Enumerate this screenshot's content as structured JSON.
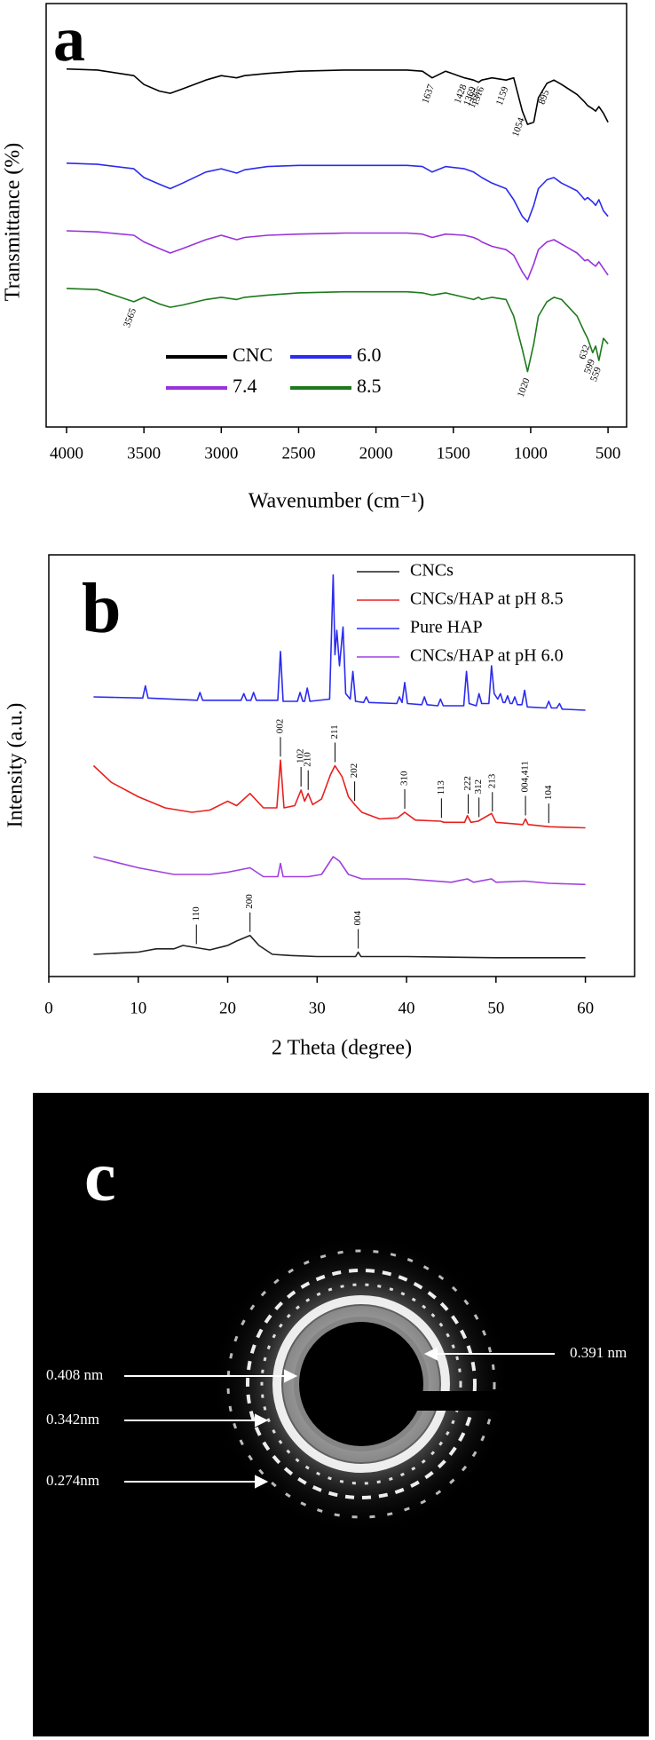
{
  "chart_data": [
    {
      "type": "line",
      "panel_label": "a",
      "x_label": "Wavenumber (cm⁻¹)",
      "y_label": "Transmittance (%)",
      "xlim": [
        4132,
        380
      ],
      "ylim": [
        0,
        382
      ],
      "xticks": [
        4000,
        3500,
        3000,
        2500,
        2000,
        1500,
        1000,
        500
      ],
      "legend": "grid",
      "x": [
        4000,
        3800,
        3565,
        3500,
        3400,
        3330,
        3250,
        3100,
        3000,
        2900,
        2850,
        2700,
        2500,
        2200,
        2000,
        1800,
        1700,
        1637,
        1550,
        1428,
        1369,
        1337,
        1316,
        1250,
        1159,
        1110,
        1054,
        1020,
        980,
        950,
        895,
        850,
        800,
        700,
        650,
        632,
        599,
        580,
        559,
        530,
        500
      ],
      "series": [
        {
          "name": "CNC",
          "color": "#000000",
          "values": [
            323,
            322,
            317,
            309,
            303,
            301,
            305,
            313,
            317,
            315,
            317,
            319,
            321,
            322,
            322,
            322,
            321,
            315,
            321,
            315,
            313,
            311,
            313,
            315,
            313,
            315,
            285,
            273,
            275,
            297,
            310,
            313,
            309,
            300,
            293,
            290,
            287,
            285,
            289,
            283,
            275
          ],
          "annotations": [
            1637,
            1428,
            1369,
            1337,
            1316,
            1159,
            1054,
            895
          ]
        },
        {
          "name": "6.0",
          "color": "#2b2bef",
          "values": [
            238,
            237,
            233,
            225,
            219,
            215,
            220,
            230,
            233,
            229,
            232,
            235,
            236,
            236,
            236,
            236,
            235,
            230,
            235,
            233,
            230,
            227,
            225,
            220,
            215,
            205,
            190,
            185,
            200,
            215,
            223,
            225,
            220,
            213,
            205,
            207,
            203,
            200,
            205,
            195,
            190
          ]
        },
        {
          "name": "7.4",
          "color": "#9a32dc",
          "values": [
            177,
            176,
            173,
            167,
            161,
            157,
            161,
            169,
            173,
            169,
            171,
            173,
            174,
            175,
            175,
            175,
            174,
            171,
            174,
            173,
            171,
            169,
            167,
            163,
            160,
            155,
            140,
            133,
            147,
            160,
            167,
            169,
            165,
            157,
            150,
            151,
            147,
            145,
            149,
            143,
            137
          ]
        },
        {
          "name": "8.5",
          "color": "#1c7a1c",
          "values": [
            125,
            124,
            113,
            117,
            111,
            108,
            110,
            115,
            117,
            115,
            117,
            119,
            121,
            122,
            122,
            122,
            121,
            119,
            121,
            117,
            115,
            117,
            115,
            117,
            115,
            100,
            70,
            50,
            75,
            100,
            113,
            117,
            115,
            100,
            85,
            80,
            67,
            73,
            60,
            80,
            75
          ],
          "annotations": [
            3565,
            1020,
            632,
            599,
            559
          ]
        }
      ]
    },
    {
      "type": "line",
      "panel_label": "b",
      "x_label": "2 Theta (degree)",
      "y_label": "Intensity (a.u.)",
      "xlim": [
        0,
        65.5
      ],
      "ylim": [
        0,
        380
      ],
      "xticks": [
        0,
        10,
        20,
        30,
        40,
        50,
        60
      ],
      "legend": "column",
      "series": [
        {
          "name": "CNCs",
          "color": "#222222",
          "x": [
            5,
            10,
            12,
            14,
            15,
            16.5,
            18,
            20,
            21,
            22.5,
            23.5,
            25,
            27,
            30,
            34.3,
            34.6,
            34.9,
            40,
            50,
            60
          ],
          "values": [
            20,
            22,
            25,
            25,
            28,
            26,
            24,
            28,
            32,
            37,
            28,
            20,
            19,
            18,
            18,
            22,
            18,
            18,
            17,
            17
          ],
          "annotations": [
            {
              "x": 16.5,
              "text": "110"
            },
            {
              "x": 22.5,
              "text": "200"
            },
            {
              "x": 34.6,
              "text": "004"
            }
          ]
        },
        {
          "name": "CNCs/HAP at pH 8.5",
          "color": "#e8201e",
          "x": [
            5,
            7,
            10,
            13,
            16,
            18,
            20,
            21,
            22.5,
            24,
            25.5,
            25.9,
            26.3,
            27.5,
            28.2,
            28.6,
            29,
            29.5,
            30.5,
            31.5,
            32,
            32.8,
            33.5,
            34.2,
            35,
            37,
            39,
            39.8,
            41,
            43.8,
            44.2,
            46.5,
            46.8,
            47.2,
            48,
            49.5,
            50,
            53,
            53.3,
            53.6,
            56,
            60
          ],
          "values": [
            190,
            175,
            162,
            152,
            148,
            150,
            158,
            154,
            165,
            152,
            152,
            195,
            152,
            154,
            168,
            158,
            165,
            155,
            160,
            182,
            190,
            180,
            162,
            155,
            148,
            142,
            143,
            148,
            141,
            140,
            139,
            139,
            145,
            139,
            140,
            147,
            139,
            137,
            142,
            137,
            135,
            134
          ],
          "annotations": [
            {
              "x": 25.9,
              "text": "002"
            },
            {
              "x": 28.2,
              "text": "102"
            },
            {
              "x": 29.0,
              "text": "210"
            },
            {
              "x": 32.0,
              "text": "211"
            },
            {
              "x": 34.2,
              "text": "202"
            },
            {
              "x": 39.8,
              "text": "310"
            },
            {
              "x": 43.9,
              "text": "113"
            },
            {
              "x": 46.9,
              "text": "222"
            },
            {
              "x": 48.1,
              "text": "312"
            },
            {
              "x": 49.6,
              "text": "213"
            },
            {
              "x": 53.3,
              "text": "004,411"
            },
            {
              "x": 55.9,
              "text": "104"
            }
          ]
        },
        {
          "name": "Pure HAP",
          "color": "#2b2bef",
          "x": [
            5,
            10.5,
            10.8,
            11.1,
            16.6,
            16.9,
            17.2,
            21.5,
            21.8,
            22.1,
            22.6,
            22.9,
            23.2,
            25.6,
            25.9,
            26.2,
            27.8,
            28.1,
            28.4,
            28.6,
            28.9,
            29.2,
            31.4,
            31.8,
            32.0,
            32.2,
            32.5,
            32.9,
            33.2,
            33.7,
            34.0,
            34.3,
            35.2,
            35.5,
            35.8,
            38.9,
            39.2,
            39.5,
            39.8,
            40.1,
            41.7,
            42.0,
            42.3,
            43.5,
            43.8,
            44.1,
            46.4,
            46.7,
            47.0,
            47.8,
            48.1,
            48.4,
            49.2,
            49.5,
            49.8,
            50.2,
            50.5,
            50.8,
            51.0,
            51.3,
            51.6,
            51.8,
            52.1,
            52.4,
            52.9,
            53.2,
            53.5,
            55.6,
            55.9,
            56.2,
            56.8,
            57.1,
            57.4,
            60
          ],
          "values": [
            252,
            251,
            262,
            251,
            249,
            256,
            249,
            249,
            255,
            249,
            249,
            256,
            249,
            249,
            293,
            248,
            248,
            256,
            248,
            248,
            260,
            248,
            250,
            362,
            290,
            312,
            280,
            315,
            255,
            250,
            275,
            248,
            247,
            252,
            247,
            246,
            252,
            247,
            265,
            246,
            245,
            252,
            245,
            244,
            250,
            244,
            244,
            275,
            246,
            244,
            255,
            246,
            246,
            280,
            255,
            250,
            255,
            247,
            247,
            253,
            246,
            246,
            252,
            245,
            245,
            258,
            243,
            242,
            248,
            242,
            242,
            246,
            241,
            240
          ]
        },
        {
          "name": "CNCs/HAP at pH 6.0",
          "color": "#a040e0",
          "x": [
            5,
            7,
            10,
            14,
            18,
            20,
            22.5,
            24,
            25.6,
            25.9,
            26.2,
            29,
            30.5,
            31.8,
            32.5,
            33.5,
            35,
            40,
            45,
            46.8,
            47.5,
            49.5,
            50,
            53.2,
            56,
            60
          ],
          "values": [
            108,
            104,
            98,
            92,
            92,
            94,
            98,
            90,
            90,
            102,
            90,
            90,
            92,
            108,
            104,
            92,
            88,
            88,
            85,
            88,
            85,
            88,
            85,
            86,
            84,
            83
          ]
        }
      ]
    }
  ],
  "image_panel": {
    "panel_label": "c",
    "annotations": [
      "0.408 nm",
      "0.342nm",
      "0.274nm",
      "0.391 nm"
    ]
  }
}
